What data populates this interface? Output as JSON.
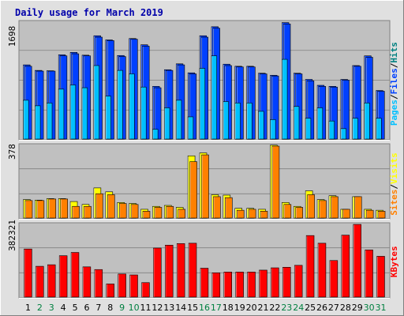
{
  "chart_data": {
    "type": "bar",
    "title": "Daily usage for March 2019",
    "categories": [
      "1",
      "2",
      "3",
      "4",
      "5",
      "6",
      "7",
      "8",
      "9",
      "10",
      "11",
      "12",
      "13",
      "14",
      "15",
      "16",
      "17",
      "18",
      "19",
      "20",
      "21",
      "22",
      "23",
      "24",
      "25",
      "26",
      "27",
      "28",
      "29",
      "30",
      "31"
    ],
    "weekend_days": [
      "2",
      "3",
      "9",
      "10",
      "16",
      "17",
      "23",
      "24",
      "30",
      "31"
    ],
    "colors": {
      "title": "#0000aa",
      "hits": "#0040ff",
      "files": "#00c0ff",
      "pages": "#00c0ff",
      "visits": "#ffff00",
      "sites": "#ff8000",
      "kbytes": "#ff0000",
      "weekday_label": "#000000",
      "weekend_label": "#008040",
      "panel_bg": "#c0c0c0",
      "frame_bg": "#e0e0e0"
    },
    "panels": [
      {
        "id": "top",
        "ymax_label": "1698",
        "ylim": [
          0,
          1698
        ],
        "side_labels": [
          {
            "text": "Pages",
            "color": "#00c0ff"
          },
          {
            "text": "/",
            "color": "#000000"
          },
          {
            "text": "Files",
            "color": "#0040ff"
          },
          {
            "text": "/",
            "color": "#000000"
          },
          {
            "text": "Hits",
            "color": "#008080"
          }
        ],
        "series": [
          {
            "name": "Hits",
            "values": [
              1070,
              990,
              985,
              1215,
              1250,
              1210,
              1490,
              1430,
              1205,
              1450,
              1360,
              760,
              1000,
              1085,
              955,
              1490,
              1620,
              1080,
              1050,
              1050,
              950,
              920,
              1680,
              950,
              860,
              775,
              760,
              860,
              1060,
              1200,
              700
            ]
          },
          {
            "name": "Files",
            "values": [
              1050,
              980,
              980,
              1200,
              1230,
              1200,
              1470,
              1420,
              1190,
              1440,
              1340,
              740,
              990,
              1070,
              940,
              1470,
              1600,
              1060,
              1040,
              1040,
              940,
              910,
              1660,
              940,
              840,
              760,
              750,
              850,
              1050,
              1180,
              690
            ]
          },
          {
            "name": "Pages",
            "values": [
              560,
              480,
              520,
              720,
              780,
              740,
              1060,
              620,
              990,
              940,
              750,
              140,
              450,
              560,
              320,
              1020,
              1200,
              540,
              520,
              520,
              400,
              280,
              1150,
              470,
              300,
              450,
              260,
              150,
              300,
              520,
              300
            ]
          }
        ]
      },
      {
        "id": "middle",
        "ymax_label": "378",
        "ylim": [
          0,
          378
        ],
        "side_labels": [
          {
            "text": "Sites",
            "color": "#ff8000"
          },
          {
            "text": "/",
            "color": "#000000"
          },
          {
            "text": "Visits",
            "color": "#ffff00"
          }
        ],
        "series": [
          {
            "name": "Visits",
            "values": [
              95,
              92,
              100,
              100,
              85,
              70,
              155,
              135,
              80,
              75,
              45,
              60,
              65,
              55,
              320,
              335,
              120,
              118,
              50,
              50,
              45,
              375,
              80,
              60,
              140,
              95,
              115,
              45,
              110,
              45,
              40
            ]
          },
          {
            "name": "Sites",
            "values": [
              90,
              90,
              98,
              98,
              60,
              60,
              125,
              120,
              75,
              70,
              35,
              55,
              60,
              45,
              290,
              325,
              110,
              105,
              40,
              45,
              35,
              370,
              70,
              55,
              120,
              90,
              110,
              45,
              110,
              40,
              35
            ]
          }
        ]
      },
      {
        "id": "bottom",
        "ymax_label": "382321",
        "ylim": [
          0,
          382321
        ],
        "side_labels": [
          {
            "text": "KBytes",
            "color": "#ff0000"
          }
        ],
        "series": [
          {
            "name": "KBytes",
            "values": [
              250000,
              160000,
              168000,
              215000,
              232000,
              157000,
              143000,
              68000,
              120000,
              115000,
              75000,
              255000,
              270000,
              278000,
              280000,
              150000,
              126000,
              130000,
              130000,
              130000,
              140000,
              152000,
              155000,
              165000,
              320000,
              280000,
              190000,
              322000,
              378000,
              245000,
              212000
            ]
          }
        ]
      }
    ]
  }
}
